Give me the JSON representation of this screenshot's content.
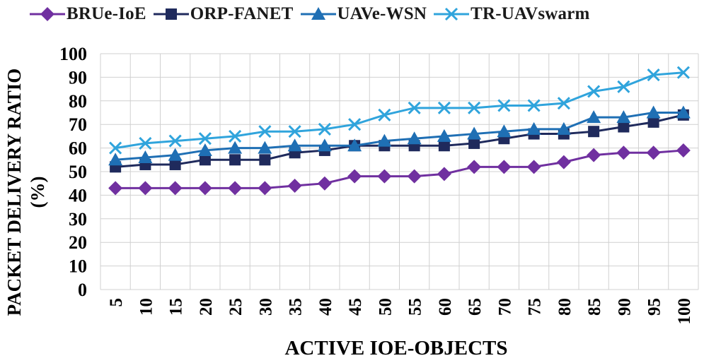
{
  "chart_data": {
    "type": "line",
    "xlabel": "ACTIVE IOE-OBJECTS",
    "ylabel_line1": "PACKET DELIVERY RATIO",
    "ylabel_line2": "(%)",
    "categories": [
      "5",
      "10",
      "15",
      "20",
      "25",
      "30",
      "35",
      "40",
      "45",
      "50",
      "55",
      "60",
      "65",
      "70",
      "75",
      "80",
      "85",
      "90",
      "95",
      "100"
    ],
    "ylim": [
      0,
      100
    ],
    "yticks": [
      "0",
      "10",
      "20",
      "30",
      "40",
      "50",
      "60",
      "70",
      "80",
      "90",
      "100"
    ],
    "grid": true,
    "legend_position": "top",
    "series": [
      {
        "name": "BRUe-IoE",
        "color": "#7030a0",
        "marker": "diamond",
        "values": [
          43,
          43,
          43,
          43,
          43,
          43,
          44,
          45,
          48,
          48,
          48,
          49,
          52,
          52,
          52,
          54,
          57,
          58,
          58,
          59
        ]
      },
      {
        "name": "ORP-FANET",
        "color": "#1f2a5c",
        "marker": "square",
        "values": [
          52,
          53,
          53,
          55,
          55,
          55,
          58,
          59,
          61,
          61,
          61,
          61,
          62,
          64,
          66,
          66,
          67,
          69,
          71,
          74
        ]
      },
      {
        "name": "UAVe-WSN",
        "color": "#1f6fb4",
        "marker": "triangle",
        "values": [
          55,
          56,
          57,
          59,
          60,
          60,
          61,
          61,
          61,
          63,
          64,
          65,
          66,
          67,
          68,
          68,
          73,
          73,
          75,
          75
        ]
      },
      {
        "name": "TR-UAVswarm",
        "color": "#30a4dc",
        "marker": "x",
        "values": [
          60,
          62,
          63,
          64,
          65,
          67,
          67,
          68,
          70,
          74,
          77,
          77,
          77,
          78,
          78,
          79,
          84,
          86,
          91,
          92
        ]
      }
    ]
  }
}
